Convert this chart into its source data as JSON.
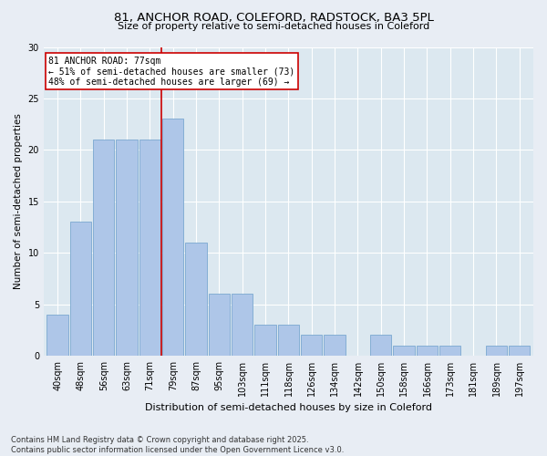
{
  "title_line1": "81, ANCHOR ROAD, COLEFORD, RADSTOCK, BA3 5PL",
  "title_line2": "Size of property relative to semi-detached houses in Coleford",
  "categories": [
    "40sqm",
    "48sqm",
    "56sqm",
    "63sqm",
    "71sqm",
    "79sqm",
    "87sqm",
    "95sqm",
    "103sqm",
    "111sqm",
    "118sqm",
    "126sqm",
    "134sqm",
    "142sqm",
    "150sqm",
    "158sqm",
    "166sqm",
    "173sqm",
    "181sqm",
    "189sqm",
    "197sqm"
  ],
  "values": [
    4,
    13,
    21,
    21,
    21,
    23,
    11,
    6,
    6,
    3,
    3,
    2,
    2,
    0,
    2,
    1,
    1,
    1,
    0,
    1,
    1
  ],
  "bar_color": "#aec6e8",
  "bar_edge_color": "#7aa8d0",
  "vline_color": "#cc0000",
  "vline_x_index": 4.5,
  "ylabel": "Number of semi-detached properties",
  "xlabel": "Distribution of semi-detached houses by size in Coleford",
  "ylim": [
    0,
    30
  ],
  "yticks": [
    0,
    5,
    10,
    15,
    20,
    25,
    30
  ],
  "annotation_title": "81 ANCHOR ROAD: 77sqm",
  "annotation_line1": "← 51% of semi-detached houses are smaller (73)",
  "annotation_line2": "48% of semi-detached houses are larger (69) →",
  "footnote_line1": "Contains HM Land Registry data © Crown copyright and database right 2025.",
  "footnote_line2": "Contains public sector information licensed under the Open Government Licence v3.0.",
  "bg_color": "#e8edf4",
  "plot_bg_color": "#dce8f0",
  "title_fontsize": 9.5,
  "subtitle_fontsize": 8,
  "ylabel_fontsize": 7.5,
  "xlabel_fontsize": 8,
  "tick_fontsize": 7,
  "annotation_fontsize": 7,
  "footnote_fontsize": 6
}
